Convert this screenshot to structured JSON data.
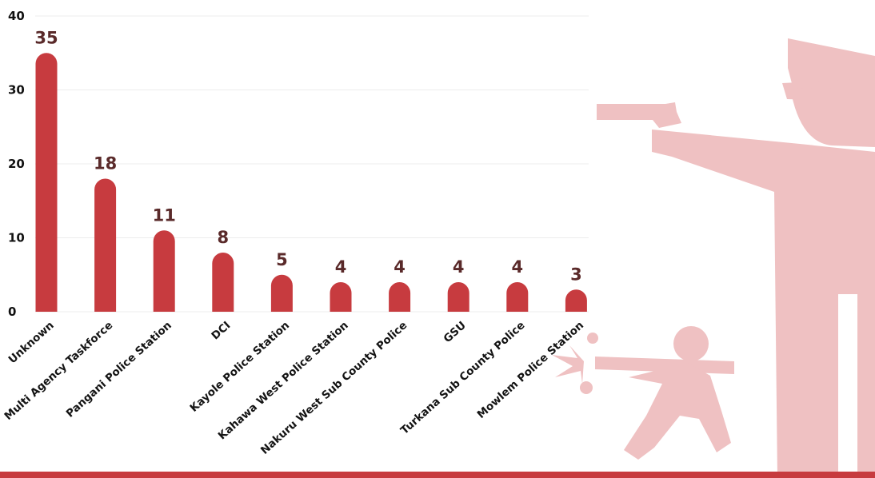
{
  "chart_data": {
    "type": "bar",
    "categories": [
      "Unknown",
      "Multi Agency Taskforce",
      "Pangani Police Station",
      "DCI",
      "Kayole Police Station",
      "Kahawa West Police Station",
      "Nakuru West Sub County  Police",
      "GSU",
      "Turkana Sub County Police",
      "Mowlem Police Station"
    ],
    "values": [
      35,
      18,
      11,
      8,
      5,
      4,
      4,
      4,
      4,
      3
    ],
    "data_labels": [
      "35",
      "18",
      "11",
      "8",
      "5",
      "4",
      "4",
      "4",
      "4",
      "3"
    ],
    "yticks": [
      0,
      10,
      20,
      30,
      40
    ],
    "ylim": [
      0,
      40
    ],
    "grid": true,
    "legend": "none",
    "bar_color": "#c73b3f",
    "label_color": "#5a2a2a",
    "illustration_color": "#efc1c2",
    "illustration": "police-officers-shooting-silhouette-icon"
  }
}
